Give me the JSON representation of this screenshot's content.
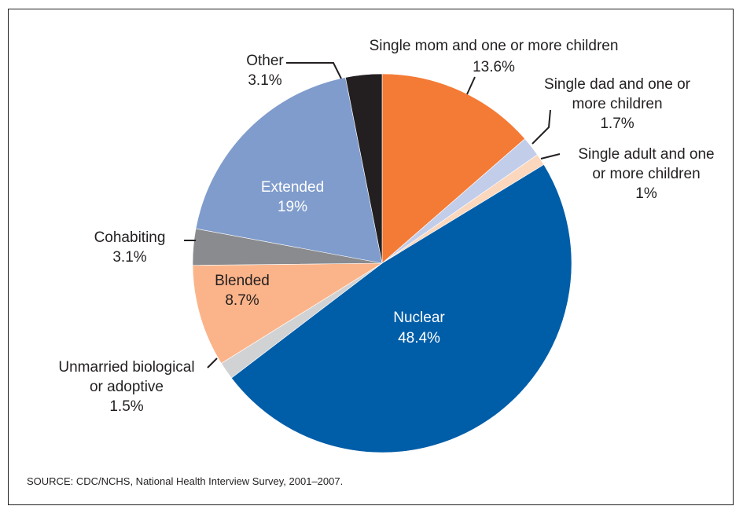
{
  "chart_data": {
    "type": "pie",
    "title": "",
    "slices": [
      {
        "label": "Single mom and one or more children",
        "value": 13.6,
        "value_label": "13.6%",
        "color": "#f47b36"
      },
      {
        "label": "Single dad and one or more children",
        "value": 1.7,
        "value_label": "1.7%",
        "color": "#c2cdea"
      },
      {
        "label": "Single adult and one or more children",
        "value": 1,
        "value_label": "1%",
        "color": "#fbd7bd"
      },
      {
        "label": "Nuclear",
        "value": 48.4,
        "value_label": "48.4%",
        "color": "#005da8"
      },
      {
        "label": "Unmarried biological or adoptive",
        "value": 1.5,
        "value_label": "1.5%",
        "color": "#d1d2d4"
      },
      {
        "label": "Blended",
        "value": 8.7,
        "value_label": "8.7%",
        "color": "#fbb48a"
      },
      {
        "label": "Cohabiting",
        "value": 3.1,
        "value_label": "3.1%",
        "color": "#8a8b8e"
      },
      {
        "label": "Extended",
        "value": 19,
        "value_label": "19%",
        "color": "#7f9ccc"
      },
      {
        "label": "Other",
        "value": 3.1,
        "value_label": "3.1%",
        "color": "#231f20"
      }
    ],
    "start_angle_deg": 0,
    "direction": "clockwise",
    "legend": "none"
  },
  "source": "SOURCE: CDC/NCHS, National Health Interview Survey, 2001–2007."
}
